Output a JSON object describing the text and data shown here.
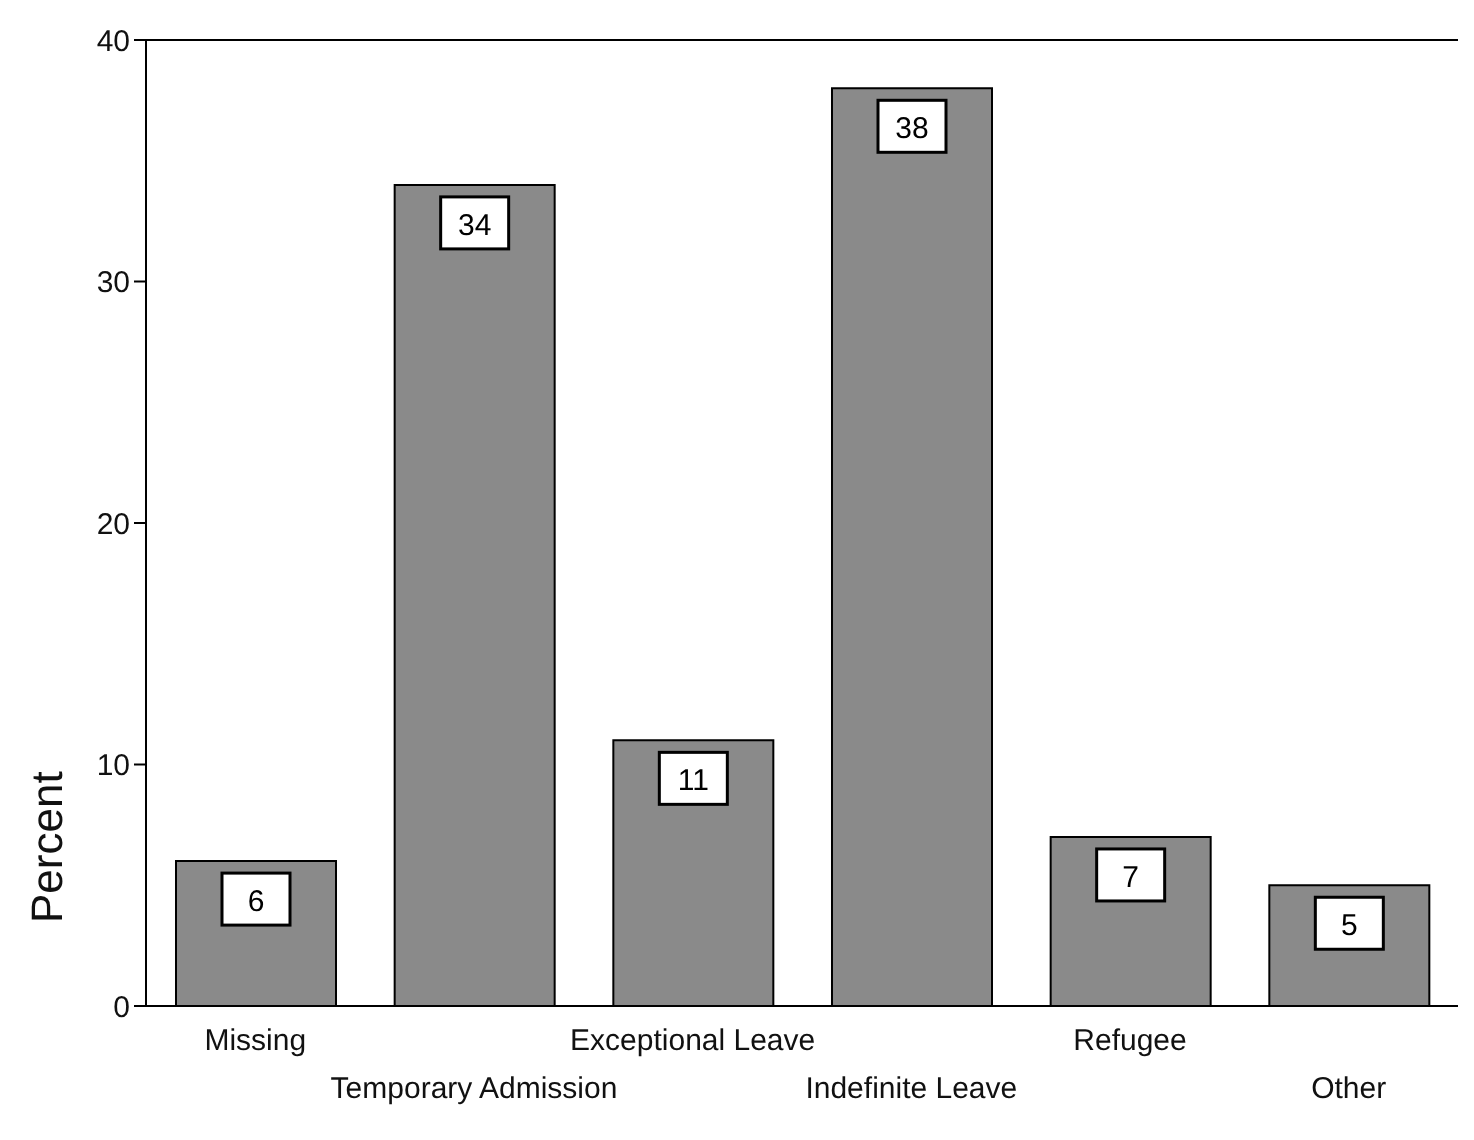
{
  "chart_data": {
    "type": "bar",
    "ylabel": "Percent",
    "categories": [
      "Missing",
      "Temporary Admission",
      "Exceptional Leave",
      "Indefinite Leave",
      "Refugee",
      "Other"
    ],
    "values": [
      6,
      34,
      11,
      38,
      7,
      5
    ],
    "color": "#8a8a8a",
    "ylim": [
      0,
      40
    ],
    "yticks": [
      0,
      10,
      20,
      30,
      40
    ],
    "grid": false,
    "data_labels": true,
    "legend": false
  }
}
